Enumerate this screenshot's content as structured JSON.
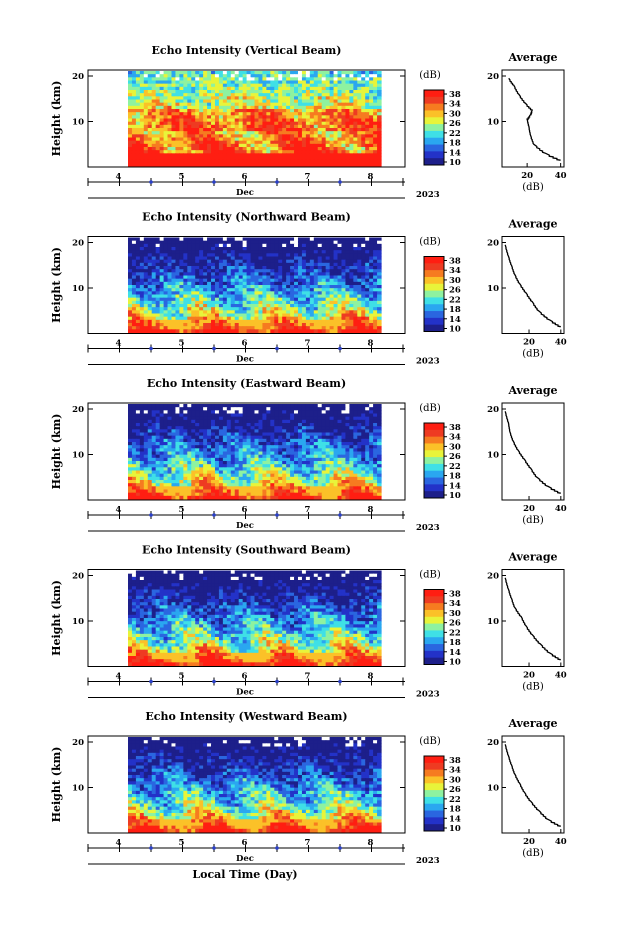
{
  "colormap": [
    "#1d1f8a",
    "#2332c8",
    "#2a66e0",
    "#2aa7f0",
    "#3fe0e6",
    "#8ef2a0",
    "#e8f43a",
    "#fbc128",
    "#f67b20",
    "#ee3b22",
    "#ff1e12"
  ],
  "xlabel": "Local Time (Day)",
  "chart_data": [
    {
      "type": "heatmap",
      "title": "Echo Intensity (Vertical Beam)",
      "ylabel": "Height (km)",
      "xlabel": "Dec",
      "year_label": "2023",
      "x_ticks": [
        "4",
        "5",
        "6",
        "7",
        "8"
      ],
      "y_ticks": [
        "10",
        "20"
      ],
      "colorbar": {
        "unit": "(dB)",
        "ticks": [
          "38",
          "34",
          "30",
          "26",
          "22",
          "18",
          "14",
          "10"
        ],
        "range": [
          10,
          38
        ]
      },
      "profile": {
        "title": "Average",
        "xlabel": "(dB)",
        "x_ticks": [
          "20",
          "40"
        ],
        "y_ticks": [
          "10",
          "20"
        ],
        "xlim": [
          5,
          42
        ],
        "ylim": [
          0,
          20
        ],
        "height_km": [
          1.5,
          3,
          5,
          7,
          9,
          10.5,
          11.5,
          12.5,
          14,
          16,
          18,
          19.5
        ],
        "db": [
          40,
          31,
          24,
          22,
          21,
          20,
          22,
          23,
          19,
          15,
          12,
          9
        ]
      }
    },
    {
      "type": "heatmap",
      "title": "Echo Intensity (Northward Beam)",
      "ylabel": "Height (km)",
      "xlabel": "Dec",
      "year_label": "2023",
      "x_ticks": [
        "4",
        "5",
        "6",
        "7",
        "8"
      ],
      "y_ticks": [
        "10",
        "20"
      ],
      "colorbar": {
        "unit": "(dB)",
        "ticks": [
          "38",
          "34",
          "30",
          "26",
          "22",
          "18",
          "14",
          "10"
        ],
        "range": [
          10,
          38
        ]
      },
      "profile": {
        "title": "Average",
        "xlabel": "(dB)",
        "x_ticks": [
          "20",
          "40"
        ],
        "y_ticks": [
          "10",
          "20"
        ],
        "xlim": [
          3,
          42
        ],
        "ylim": [
          0,
          20
        ],
        "height_km": [
          1.5,
          3,
          5,
          7,
          9,
          11,
          13,
          15,
          17,
          19.5
        ],
        "db": [
          40,
          33,
          26,
          22,
          18,
          14,
          11,
          9,
          7,
          5
        ]
      }
    },
    {
      "type": "heatmap",
      "title": "Echo Intensity (Eastward Beam)",
      "ylabel": "Height (km)",
      "xlabel": "Dec",
      "year_label": "2023",
      "x_ticks": [
        "4",
        "5",
        "6",
        "7",
        "8"
      ],
      "y_ticks": [
        "10",
        "20"
      ],
      "colorbar": {
        "unit": "(dB)",
        "ticks": [
          "38",
          "34",
          "30",
          "26",
          "22",
          "18",
          "14",
          "10"
        ],
        "range": [
          10,
          38
        ]
      },
      "profile": {
        "title": "Average",
        "xlabel": "(dB)",
        "x_ticks": [
          "20",
          "40"
        ],
        "y_ticks": [
          "10",
          "20"
        ],
        "xlim": [
          3,
          42
        ],
        "ylim": [
          0,
          20
        ],
        "height_km": [
          1.5,
          3,
          5,
          7,
          9,
          11,
          13,
          15,
          17,
          19.5
        ],
        "db": [
          40,
          32,
          25,
          21,
          17,
          13,
          10,
          8,
          7,
          5
        ]
      }
    },
    {
      "type": "heatmap",
      "title": "Echo Intensity (Southward Beam)",
      "ylabel": "Height (km)",
      "xlabel": "Dec",
      "year_label": "2023",
      "x_ticks": [
        "4",
        "5",
        "6",
        "7",
        "8"
      ],
      "y_ticks": [
        "10",
        "20"
      ],
      "colorbar": {
        "unit": "(dB)",
        "ticks": [
          "38",
          "34",
          "30",
          "26",
          "22",
          "18",
          "14",
          "10"
        ],
        "range": [
          10,
          38
        ]
      },
      "profile": {
        "title": "Average",
        "xlabel": "(dB)",
        "x_ticks": [
          "20",
          "40"
        ],
        "y_ticks": [
          "10",
          "20"
        ],
        "xlim": [
          3,
          42
        ],
        "ylim": [
          0,
          20
        ],
        "height_km": [
          1.5,
          3,
          5,
          7,
          9,
          11,
          13,
          15,
          17,
          19.5
        ],
        "db": [
          40,
          33,
          27,
          22,
          18,
          15,
          11,
          9,
          7,
          5
        ]
      }
    },
    {
      "type": "heatmap",
      "title": "Echo Intensity (Westward Beam)",
      "ylabel": "Height (km)",
      "xlabel": "Dec",
      "year_label": "2023",
      "x_ticks": [
        "4",
        "5",
        "6",
        "7",
        "8"
      ],
      "y_ticks": [
        "10",
        "20"
      ],
      "colorbar": {
        "unit": "(dB)",
        "ticks": [
          "38",
          "34",
          "30",
          "26",
          "22",
          "18",
          "14",
          "10"
        ],
        "range": [
          10,
          38
        ]
      },
      "profile": {
        "title": "Average",
        "xlabel": "(dB)",
        "x_ticks": [
          "20",
          "40"
        ],
        "y_ticks": [
          "10",
          "20"
        ],
        "xlim": [
          3,
          42
        ],
        "ylim": [
          0,
          20
        ],
        "height_km": [
          1.5,
          3,
          5,
          7,
          9,
          11,
          13,
          15,
          17,
          19.5
        ],
        "db": [
          40,
          32,
          26,
          21,
          17,
          14,
          11,
          9,
          7,
          5
        ]
      }
    }
  ]
}
